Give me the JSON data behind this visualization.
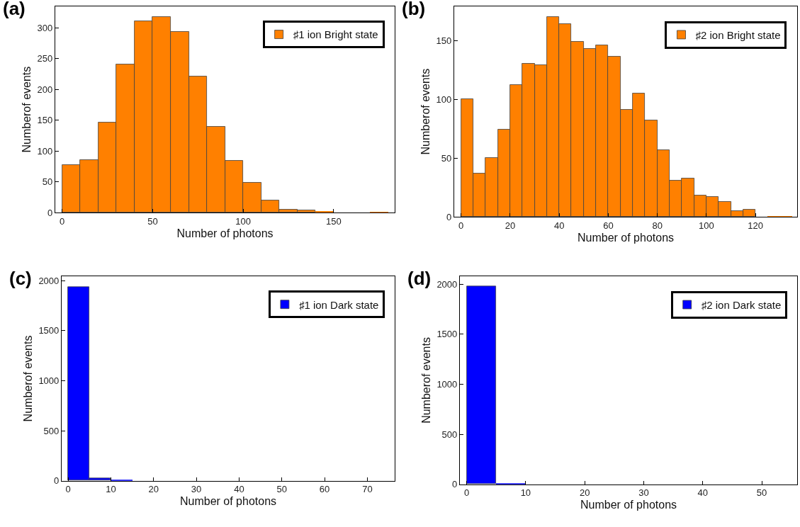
{
  "chart_data": [
    {
      "type": "histogram",
      "title": "(a)",
      "xlabel": "Number of photons",
      "ylabel": "Numberof events",
      "bins": [
        0,
        10,
        20,
        30,
        40,
        50,
        60,
        70,
        80,
        90,
        100,
        110,
        120,
        130,
        140,
        150,
        160,
        170,
        180
      ],
      "series": [
        {
          "name": "♯1 ion Bright state",
          "color": "#ff8000",
          "values": [
            78,
            85,
            146,
            241,
            311,
            318,
            294,
            221,
            140,
            84,
            49,
            20,
            5,
            4,
            3,
            0,
            0,
            1
          ]
        }
      ],
      "xlim": [
        -3.8,
        183.7
      ],
      "ylim": [
        0,
        335
      ],
      "xticks": [
        0,
        50,
        100,
        150
      ],
      "yticks": [
        0,
        50,
        100,
        150,
        200,
        250,
        300
      ],
      "legend": "top right",
      "grid": false
    },
    {
      "type": "histogram",
      "title": "(b)",
      "xlabel": "Number of photons",
      "ylabel": "Numberof events",
      "bins": [
        0,
        5,
        10,
        15,
        20,
        25,
        30,
        35,
        40,
        45,
        50,
        55,
        60,
        65,
        70,
        75,
        80,
        85,
        90,
        95,
        100,
        105,
        110,
        115,
        120,
        125,
        130,
        135
      ],
      "series": [
        {
          "name": "♯2 ion Bright state",
          "color": "#ff8000",
          "values": [
            100,
            37,
            50,
            74,
            112,
            130,
            129,
            170,
            164,
            149,
            143,
            146,
            136,
            91,
            105,
            82,
            57,
            31,
            33,
            18,
            17,
            13,
            5,
            6,
            0,
            1,
            1
          ]
        }
      ],
      "xlim": [
        -2.8,
        137
      ],
      "ylim": [
        0,
        179
      ],
      "xticks": [
        0,
        20,
        40,
        60,
        80,
        100,
        120
      ],
      "yticks": [
        0,
        50,
        100,
        150
      ],
      "legend": "top right",
      "grid": false
    },
    {
      "type": "histogram",
      "title": "(c)",
      "xlabel": "Number of photons",
      "ylabel": "Numberof events",
      "bins": [
        0,
        5,
        10,
        15,
        20,
        25,
        30,
        35,
        40,
        45,
        50,
        55,
        60,
        65,
        70,
        75
      ],
      "series": [
        {
          "name": "♯1 ion Dark state",
          "color": "#0000ff",
          "values": [
            1935,
            25,
            10,
            null,
            0,
            0,
            0,
            0,
            0,
            0,
            0,
            0,
            0,
            null,
            0
          ]
        }
      ],
      "xlim": [
        -1.5,
        76.4
      ],
      "ylim": [
        0,
        2042
      ],
      "xticks": [
        0,
        10,
        20,
        30,
        40,
        50,
        60,
        70
      ],
      "yticks": [
        0,
        500,
        1000,
        1500,
        2000
      ],
      "legend": "top right",
      "grid": false
    },
    {
      "type": "histogram",
      "title": "(d)",
      "xlabel": "Number of photons",
      "ylabel": "Numberof events",
      "bins": [
        0,
        5,
        10,
        15,
        20,
        25,
        30,
        35,
        40,
        45,
        50,
        55
      ],
      "series": [
        {
          "name": "♯2 ion Dark state",
          "color": "#0000ff",
          "values": [
            1975,
            10,
            0,
            0,
            0,
            0,
            0,
            0,
            0,
            0,
            0
          ]
        }
      ],
      "xlim": [
        -1.15,
        56
      ],
      "ylim": [
        0,
        2077
      ],
      "xticks": [
        0,
        10,
        20,
        30,
        40,
        50
      ],
      "yticks": [
        0,
        500,
        1000,
        1500,
        2000
      ],
      "legend": "top right",
      "grid": false
    }
  ]
}
